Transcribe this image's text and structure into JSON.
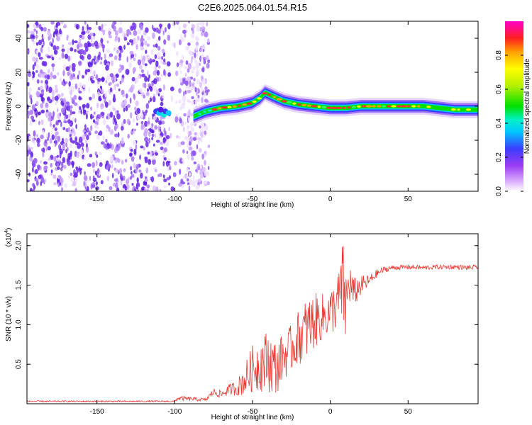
{
  "title": "C2E6.2025.064.01.54.R15",
  "chart_data": [
    {
      "type": "heatmap",
      "xlabel": "Height of straight line (km)",
      "ylabel": "Frequency (Hz)",
      "xlim": [
        -195,
        95
      ],
      "ylim": [
        -50,
        50
      ],
      "xticks": [
        -150,
        -100,
        -50,
        0,
        50
      ],
      "yticks": [
        -40,
        -20,
        0,
        20,
        40
      ],
      "colorbar": {
        "label": "Normalized spectral amplitude",
        "range": [
          0.0,
          1.0
        ],
        "ticks": [
          0.0,
          0.2,
          0.4,
          0.6,
          0.8
        ],
        "tick_labels": [
          "0.0",
          "0.2",
          "0.4",
          "0.6",
          "0.8"
        ]
      },
      "ridge": {
        "x": [
          -88,
          -80,
          -70,
          -60,
          -50,
          -45,
          -42,
          -35,
          -30,
          -20,
          -10,
          0,
          10,
          20,
          30,
          40,
          50,
          60,
          70,
          80,
          90,
          95
        ],
        "y": [
          -6,
          -3,
          -1,
          0,
          2,
          5,
          8,
          5,
          3,
          1,
          0,
          -1,
          -1,
          0,
          0,
          0,
          0,
          0,
          -1,
          -2,
          -2,
          -2
        ]
      },
      "noise_region": [
        -195,
        -78
      ]
    },
    {
      "type": "line",
      "xlabel": "Height of straight line (km)",
      "ylabel": "SNR (10 * v/v)",
      "y_multiplier": "(x10",
      "y_multiplier_exp": "4",
      "y_multiplier_close": ")",
      "xlim": [
        -195,
        95
      ],
      "ylim": [
        0,
        2.15
      ],
      "xticks": [
        -150,
        -100,
        -50,
        0,
        50
      ],
      "yticks": [
        0.5,
        1.0,
        1.5,
        2.0
      ],
      "ytick_labels": [
        "0.5",
        "1.0",
        "1.5",
        "2.0"
      ],
      "color": "#e8372f",
      "x": [
        -195,
        -100,
        -98,
        -80,
        -75,
        -70,
        -65,
        -60,
        -55,
        -50,
        -45,
        -40,
        -35,
        -30,
        -25,
        -20,
        -15,
        -10,
        -5,
        0,
        5,
        8,
        10,
        12,
        15,
        20,
        25,
        30,
        35,
        40,
        50,
        60,
        70,
        80,
        90,
        95
      ],
      "y": [
        0.03,
        0.03,
        0.07,
        0.05,
        0.15,
        0.12,
        0.18,
        0.2,
        0.3,
        0.45,
        0.5,
        0.55,
        0.45,
        0.6,
        0.7,
        0.85,
        0.95,
        1.05,
        1.1,
        1.15,
        1.3,
        1.5,
        1.2,
        1.55,
        1.4,
        1.5,
        1.55,
        1.65,
        1.7,
        1.72,
        1.73,
        1.72,
        1.73,
        1.73,
        1.72,
        1.73
      ],
      "noise_amplitude": [
        0.01,
        0.01,
        0.03,
        0.02,
        0.05,
        0.05,
        0.07,
        0.1,
        0.2,
        0.3,
        0.35,
        0.4,
        0.35,
        0.3,
        0.3,
        0.35,
        0.4,
        0.35,
        0.3,
        0.3,
        0.35,
        0.6,
        0.5,
        0.3,
        0.2,
        0.12,
        0.08,
        0.05,
        0.04,
        0.03,
        0.03,
        0.03,
        0.03,
        0.03,
        0.03,
        0.03
      ]
    }
  ]
}
